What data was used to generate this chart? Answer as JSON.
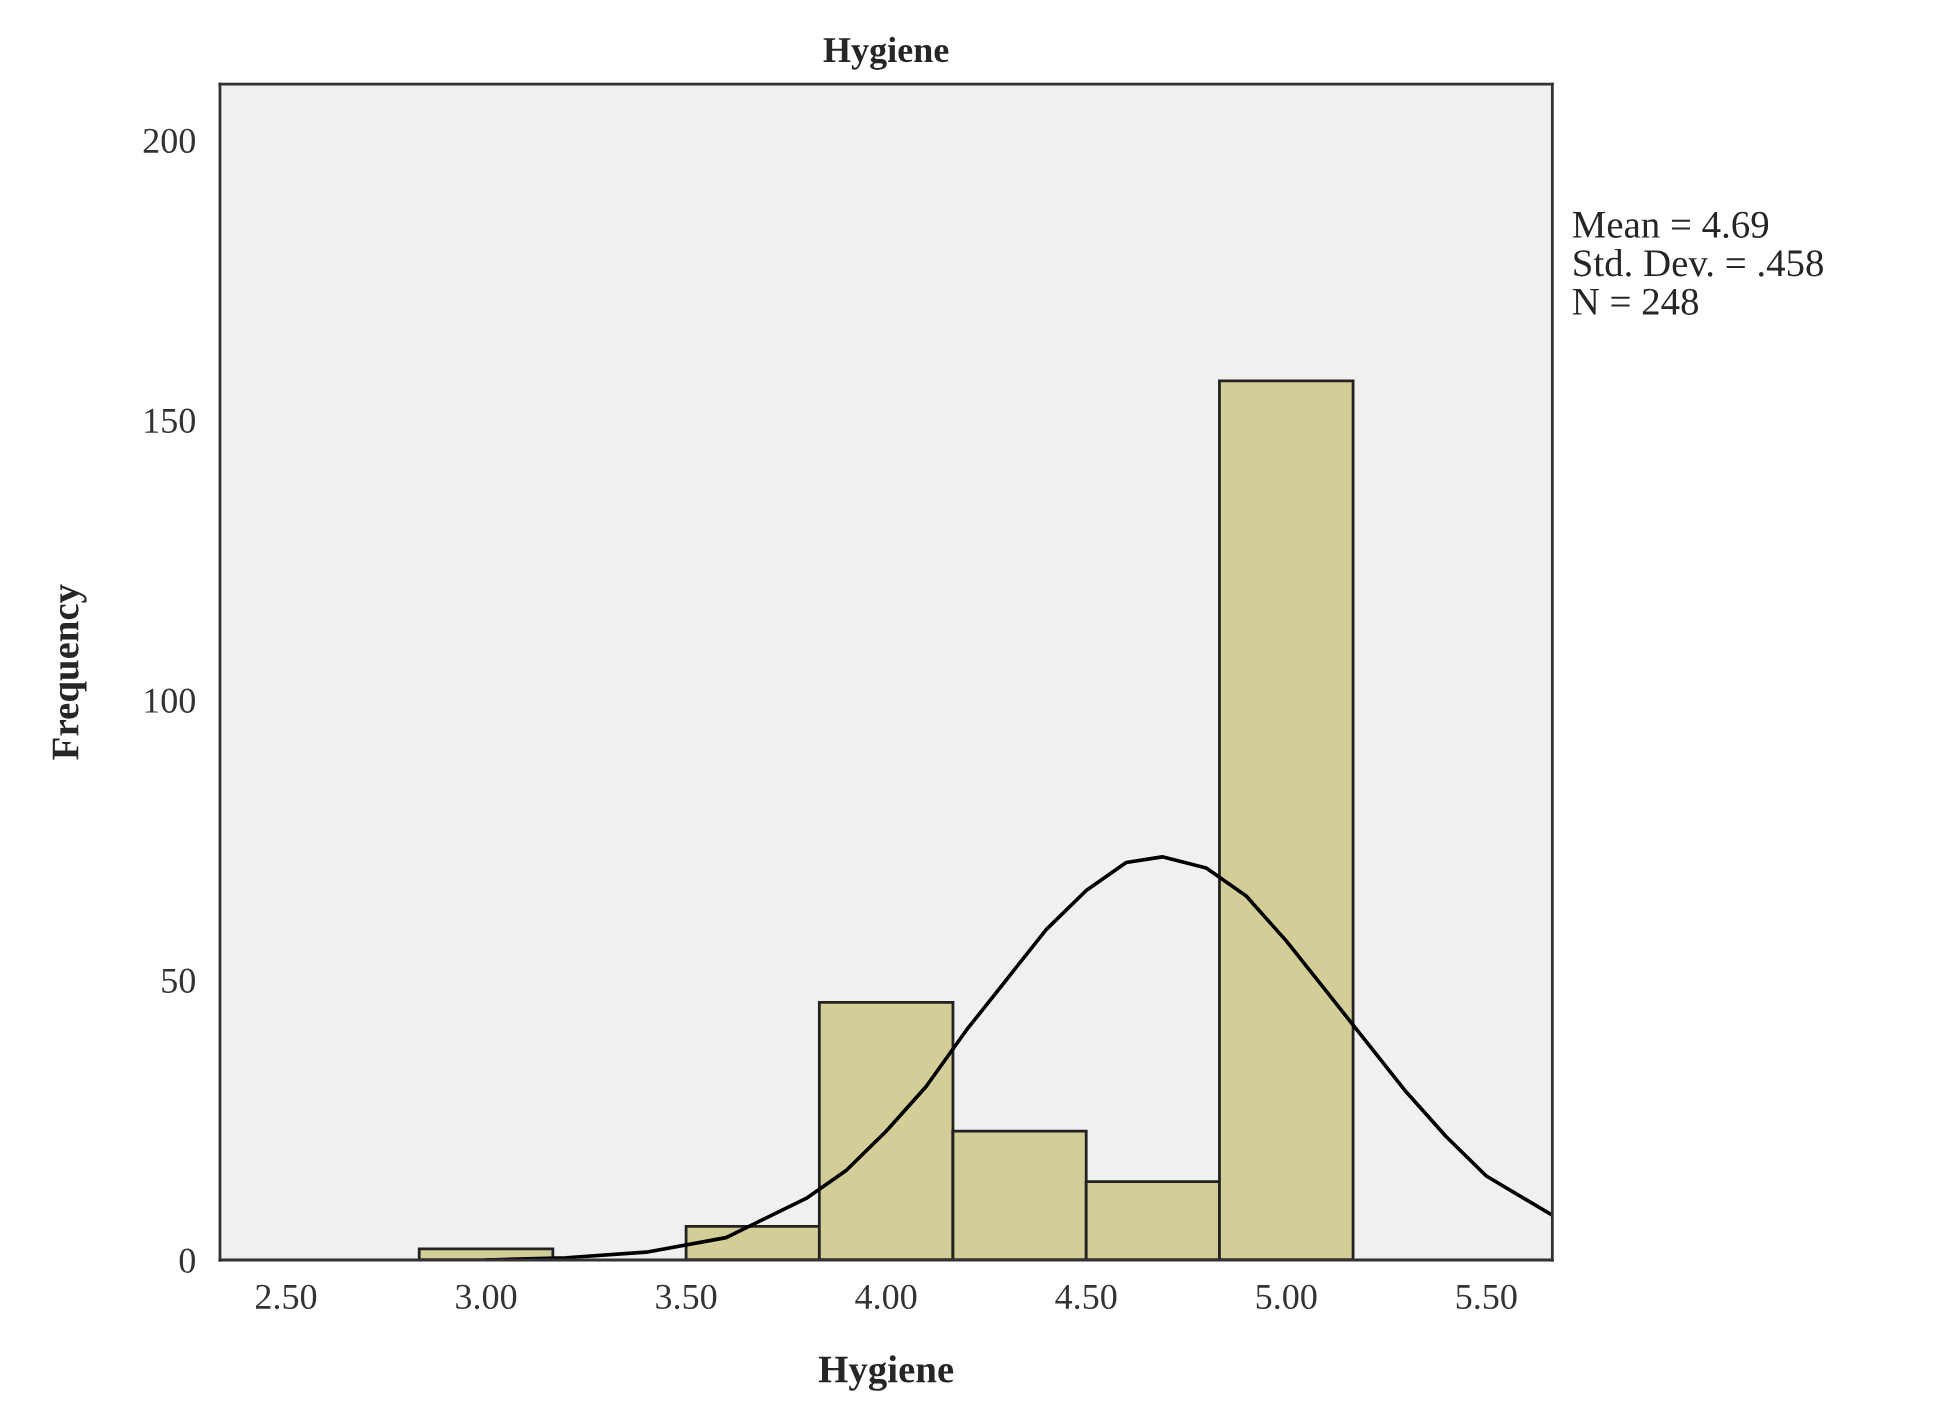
{
  "chart_data": {
    "type": "histogram",
    "title": "Hygiene",
    "xlabel": "Hygiene",
    "ylabel": "Frequency",
    "bins": [
      2.833,
      3.167,
      3.5,
      3.833,
      4.167,
      4.5,
      4.833,
      5.167
    ],
    "values": [
      2,
      0,
      6,
      46,
      23,
      14,
      157
    ],
    "color": "#d3ce97",
    "series": [
      {
        "type": "line",
        "color": "#000000",
        "x": [
          3.0,
          3.2,
          3.4,
          3.6,
          3.8,
          3.9,
          4.0,
          4.1,
          4.2,
          4.3,
          4.4,
          4.5,
          4.6,
          4.69,
          4.8,
          4.9,
          5.0,
          5.1,
          5.2,
          5.3,
          5.4,
          5.5,
          5.665
        ],
        "values": [
          0,
          0.4,
          1.4,
          4,
          11,
          16,
          23,
          31,
          41,
          50,
          59,
          66,
          71,
          72,
          70,
          65,
          57,
          48,
          39,
          30,
          22,
          15,
          8
        ]
      }
    ],
    "xlim": [
      2.335,
      5.665
    ],
    "ylim": [
      0,
      210
    ],
    "xticks": [
      {
        "value": 2.5,
        "label": "2.50"
      },
      {
        "value": 3.0,
        "label": "3.00"
      },
      {
        "value": 3.5,
        "label": "3.50"
      },
      {
        "value": 4.0,
        "label": "4.00"
      },
      {
        "value": 4.5,
        "label": "4.50"
      },
      {
        "value": 5.0,
        "label": "5.00"
      },
      {
        "value": 5.5,
        "label": "5.50"
      }
    ],
    "yticks": [
      0,
      50,
      100,
      150,
      200
    ],
    "grid": false,
    "legend": false,
    "annotations": [
      "Mean = 4.69",
      "Std. Dev. = .458",
      "N = 248"
    ]
  }
}
